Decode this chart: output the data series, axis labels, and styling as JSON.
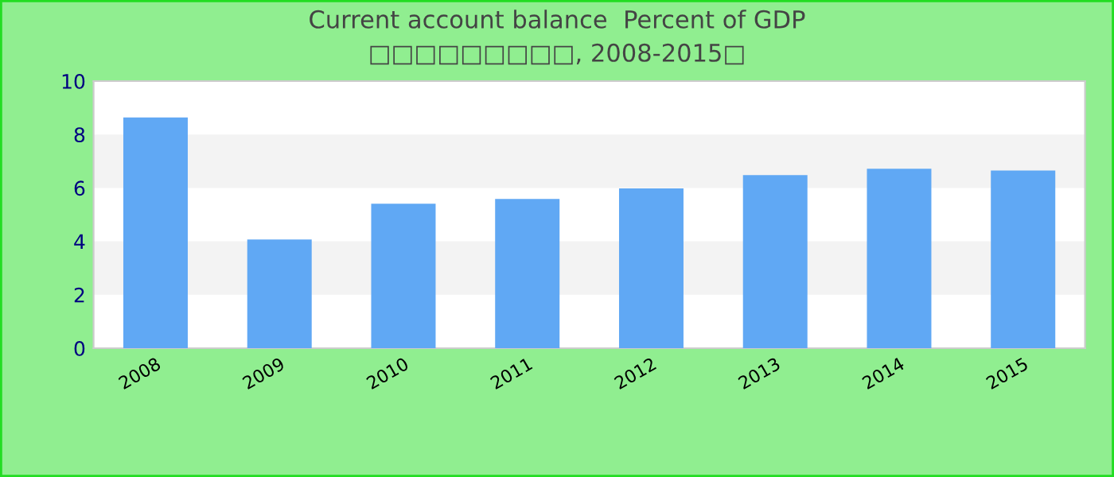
{
  "chart_data": {
    "type": "bar",
    "title": "Current account balance  Percent of GDP",
    "subtitle": "□□□□□□□□□, 2008-2015□",
    "categories": [
      "2008",
      "2009",
      "2010",
      "2011",
      "2012",
      "2013",
      "2014",
      "2015"
    ],
    "values": [
      8.64,
      4.07,
      5.41,
      5.59,
      5.98,
      6.48,
      6.72,
      6.65
    ],
    "color": "#60a8f4",
    "ylim": [
      0,
      10
    ],
    "yticks": [
      0,
      2,
      4,
      6,
      8,
      10
    ],
    "bands": [
      {
        "axis": "y",
        "from": 2,
        "to": 4,
        "color": "#f3f3f3"
      },
      {
        "axis": "y",
        "from": 6,
        "to": 8,
        "color": "#f3f3f3"
      }
    ],
    "grid": false
  }
}
